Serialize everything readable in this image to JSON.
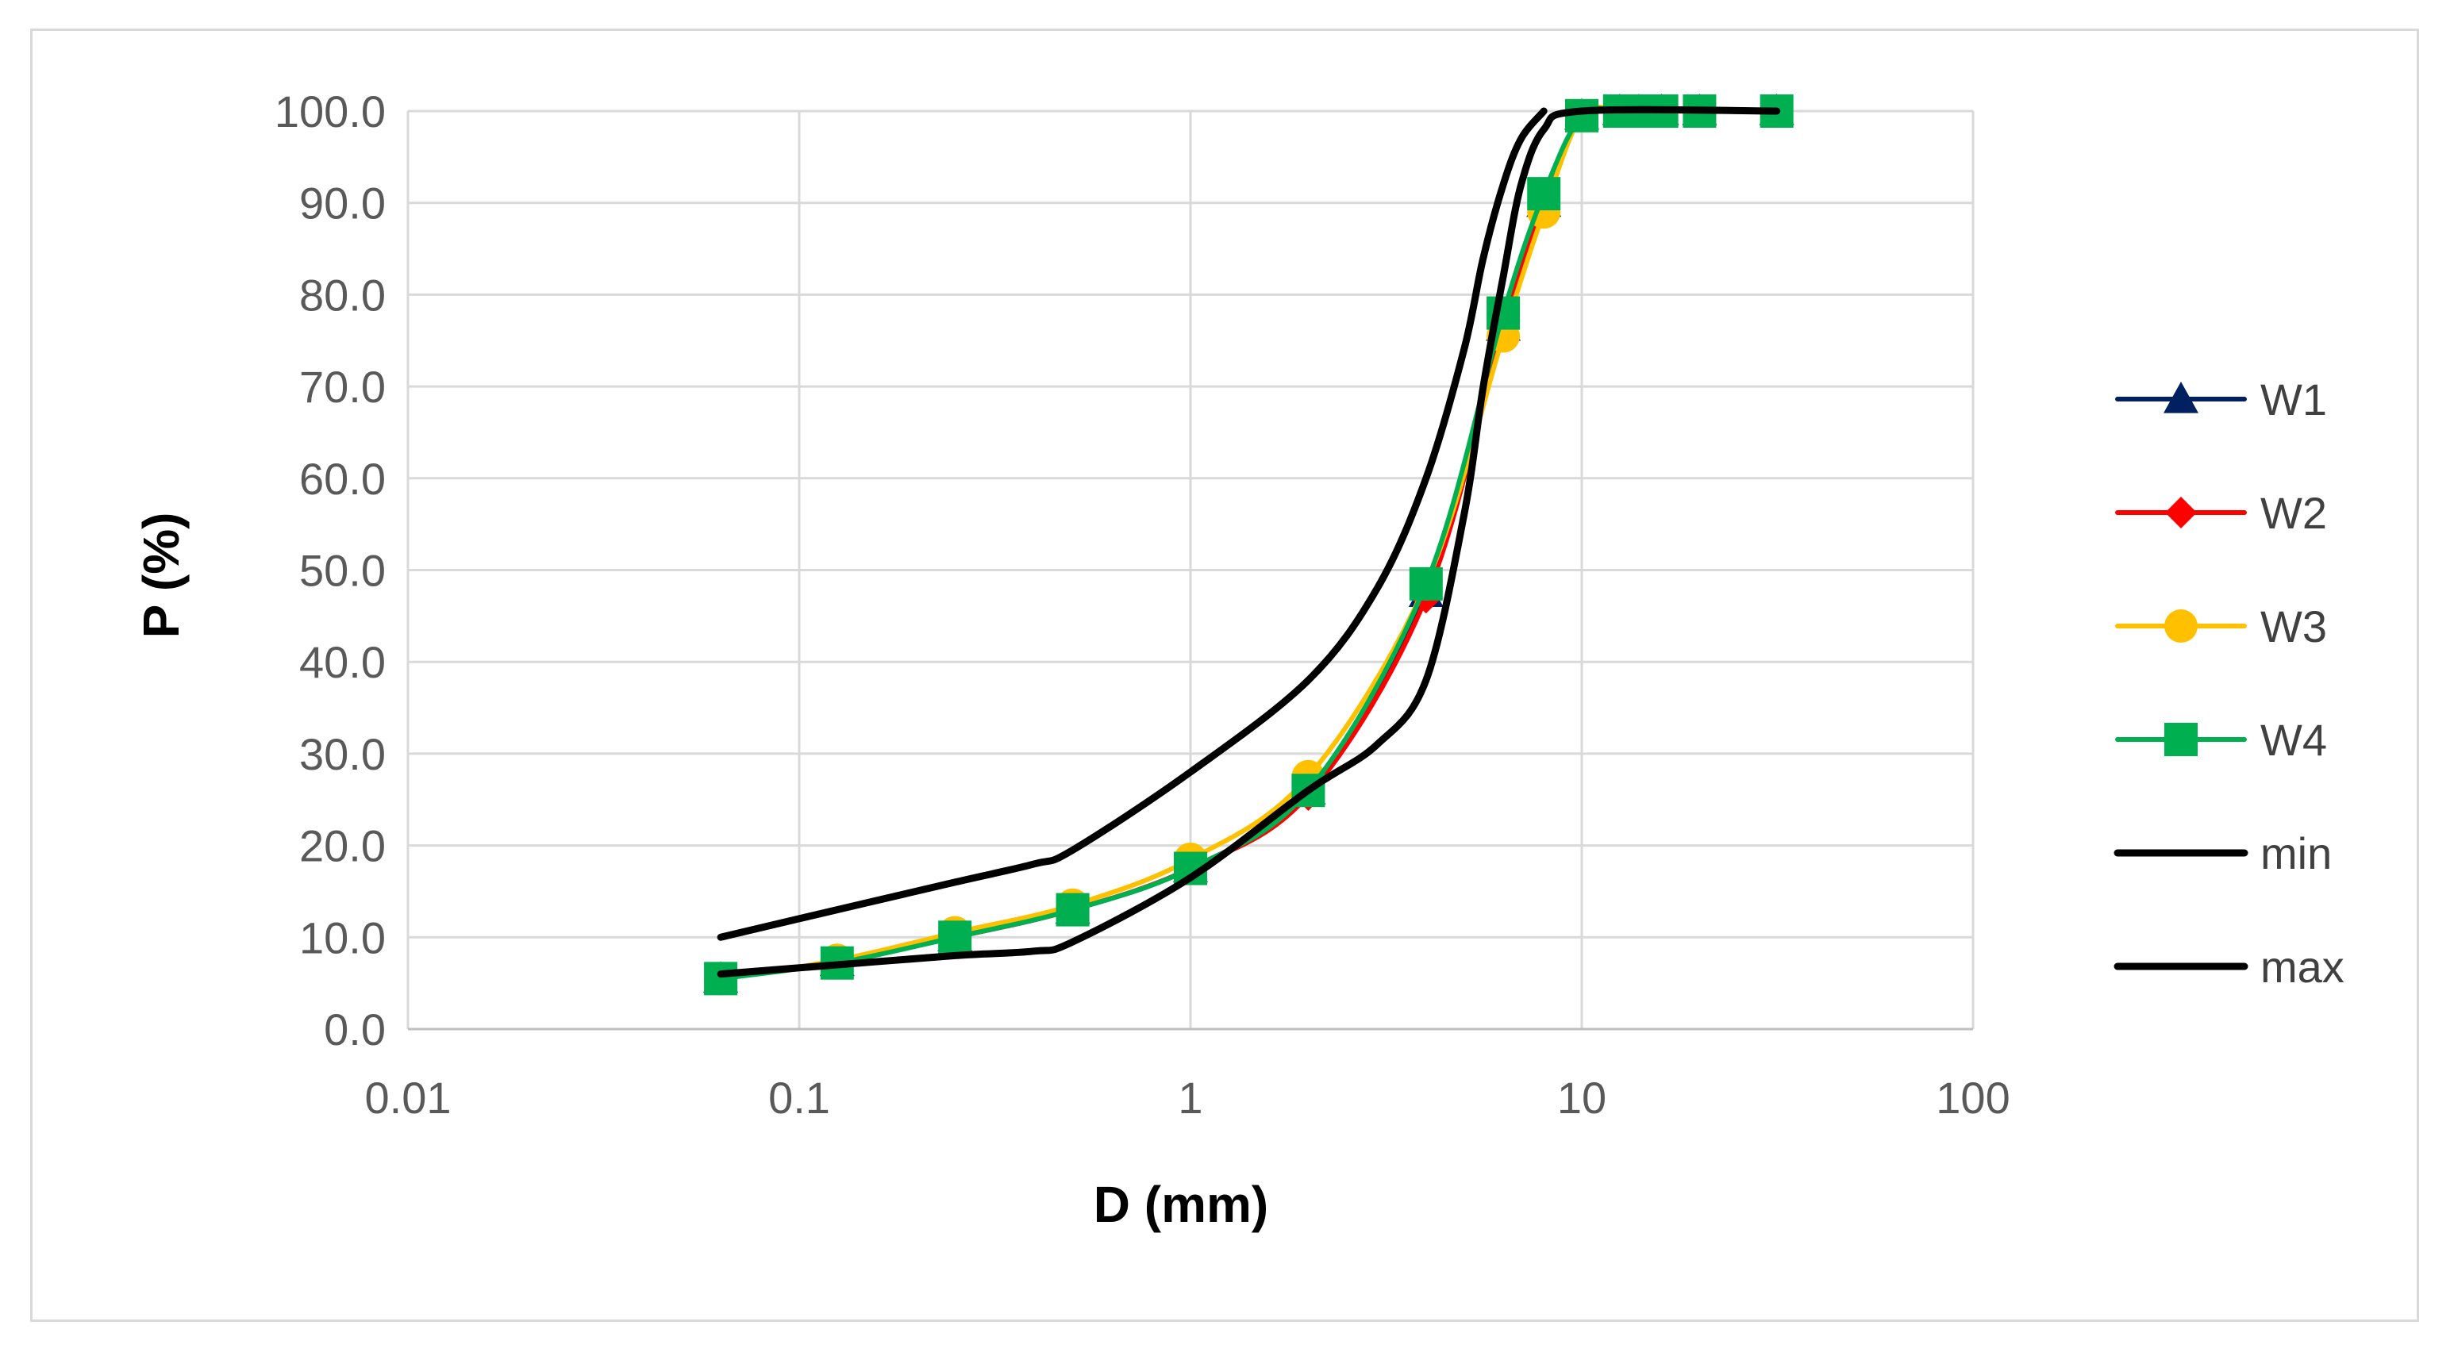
{
  "chart_data": {
    "type": "line",
    "xscale": "log",
    "xlabel": "D (mm)",
    "ylabel": "P (%)",
    "xlim": [
      0.01,
      100
    ],
    "ylim": [
      0,
      100
    ],
    "x_ticks": [
      "0.01",
      "0.1",
      "1",
      "10",
      "100"
    ],
    "y_ticks": [
      "0.0",
      "10.0",
      "20.0",
      "30.0",
      "40.0",
      "50.0",
      "60.0",
      "70.0",
      "80.0",
      "90.0",
      "100.0"
    ],
    "grid": true,
    "legend_position": "right",
    "series": [
      {
        "name": "W1",
        "marker": "triangle",
        "color": "#002060",
        "x": [
          0.063,
          0.125,
          0.25,
          0.5,
          1,
          2,
          4,
          6.3,
          8,
          10,
          12.5,
          14,
          16,
          20,
          31.5
        ],
        "y": [
          5.5,
          7.3,
          10.0,
          13.0,
          17.5,
          26.0,
          47.5,
          76.5,
          90.0,
          99.5,
          100,
          100,
          100,
          100,
          100
        ]
      },
      {
        "name": "W2",
        "marker": "diamond",
        "color": "#ff0000",
        "x": [
          0.063,
          0.125,
          0.25,
          0.5,
          1,
          2,
          4,
          6.3,
          8,
          10,
          12.5,
          14,
          16,
          20,
          31.5
        ],
        "y": [
          5.5,
          7.3,
          10.0,
          13.0,
          17.5,
          25.5,
          47.0,
          76.5,
          90.0,
          99.5,
          100,
          100,
          100,
          100,
          100
        ]
      },
      {
        "name": "W3",
        "marker": "circle",
        "color": "#ffc000",
        "x": [
          0.063,
          0.125,
          0.25,
          0.5,
          1,
          2,
          4,
          6.3,
          8,
          10,
          12.5,
          14,
          16,
          20,
          31.5
        ],
        "y": [
          5.5,
          7.5,
          10.5,
          13.5,
          18.5,
          27.5,
          48.5,
          75.5,
          89.0,
          99.5,
          100,
          100,
          100,
          100,
          100
        ]
      },
      {
        "name": "W4",
        "marker": "square",
        "color": "#00b050",
        "x": [
          0.063,
          0.125,
          0.25,
          0.5,
          1,
          2,
          4,
          6.3,
          8,
          10,
          12.5,
          14,
          16,
          20,
          31.5
        ],
        "y": [
          5.5,
          7.2,
          10.0,
          13.0,
          17.5,
          26.0,
          48.5,
          78.0,
          91.0,
          99.5,
          100,
          100,
          100,
          100,
          100
        ]
      },
      {
        "name": "min",
        "marker": "none",
        "color": "#000000",
        "x": [
          0.063,
          0.125,
          0.25,
          0.4,
          0.5,
          1,
          2,
          3,
          4,
          5,
          5.6,
          6.3,
          7,
          8,
          10,
          31.5
        ],
        "y": [
          6,
          7,
          8,
          8.5,
          9.5,
          16.5,
          26,
          31,
          38,
          56,
          70,
          82,
          92,
          98,
          100,
          100
        ]
      },
      {
        "name": "max",
        "marker": "none",
        "color": "#000000",
        "x": [
          0.063,
          0.125,
          0.25,
          0.4,
          0.5,
          1,
          2,
          3,
          4,
          5,
          5.6,
          6.3,
          7,
          8
        ],
        "y": [
          10,
          13,
          16,
          18,
          19.5,
          28,
          38,
          48,
          60,
          74,
          84,
          92,
          97,
          100
        ]
      }
    ]
  }
}
